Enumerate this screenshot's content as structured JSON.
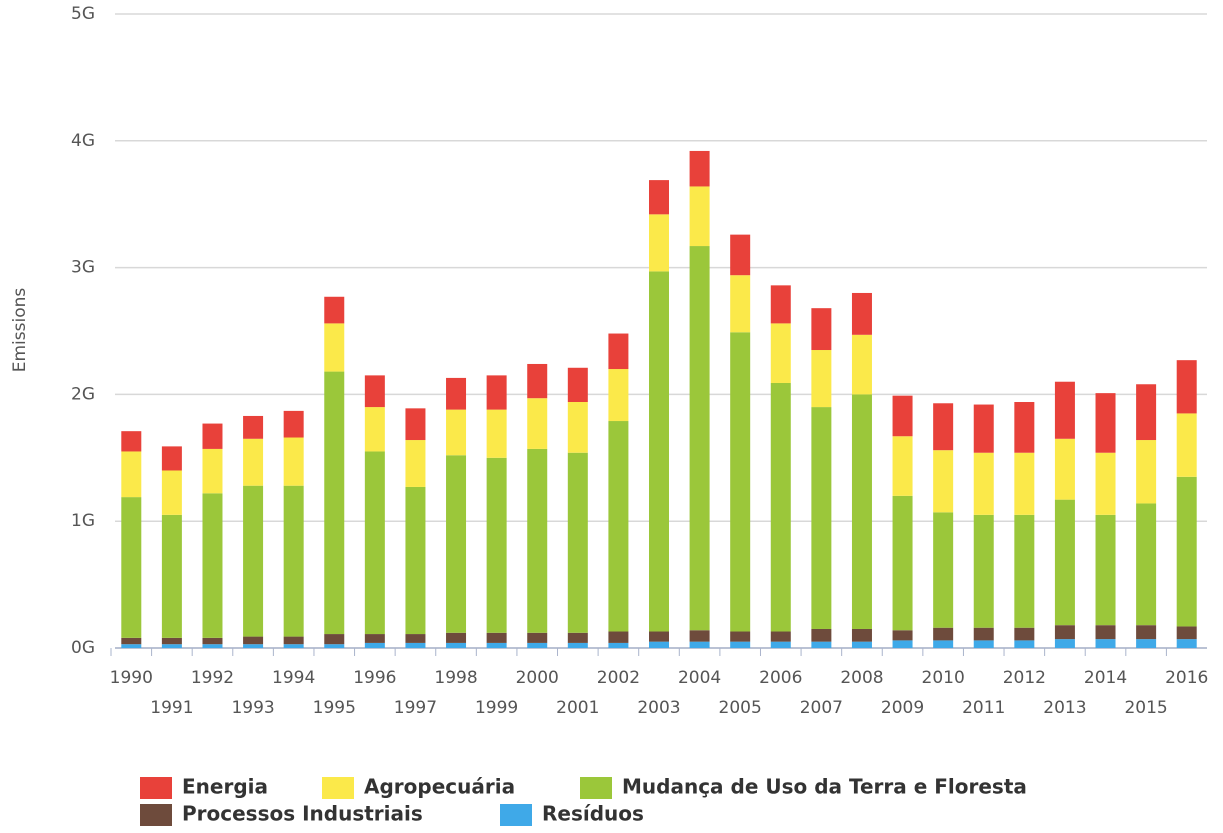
{
  "chart_data": {
    "type": "stacked_bar",
    "y_label": "Emissions",
    "categories": [
      "1990",
      "1991",
      "1992",
      "1993",
      "1994",
      "1995",
      "1996",
      "1997",
      "1998",
      "1999",
      "2000",
      "2001",
      "2002",
      "2003",
      "2004",
      "2005",
      "2006",
      "2007",
      "2008",
      "2009",
      "2010",
      "2011",
      "2012",
      "2013",
      "2014",
      "2015",
      "2016"
    ],
    "series": [
      {
        "name": "Energia",
        "color": "#e8413a",
        "values": [
          0.16,
          0.19,
          0.2,
          0.18,
          0.21,
          0.21,
          0.25,
          0.25,
          0.25,
          0.27,
          0.27,
          0.27,
          0.28,
          0.27,
          0.28,
          0.32,
          0.3,
          0.33,
          0.33,
          0.32,
          0.37,
          0.38,
          0.4,
          0.45,
          0.47,
          0.44,
          0.42
        ]
      },
      {
        "name": "Agropecuária",
        "color": "#fbe94a",
        "values": [
          0.36,
          0.35,
          0.35,
          0.37,
          0.38,
          0.38,
          0.35,
          0.37,
          0.36,
          0.38,
          0.4,
          0.4,
          0.41,
          0.45,
          0.47,
          0.45,
          0.47,
          0.45,
          0.47,
          0.47,
          0.49,
          0.49,
          0.49,
          0.48,
          0.49,
          0.5,
          0.5
        ]
      },
      {
        "name": "Mudança de Uso da Terra e Floresta",
        "color": "#9bc73a",
        "values": [
          1.11,
          0.97,
          1.14,
          1.19,
          1.19,
          2.07,
          1.44,
          1.16,
          1.4,
          1.38,
          1.45,
          1.42,
          1.66,
          2.84,
          3.03,
          2.36,
          1.96,
          1.75,
          1.85,
          1.06,
          0.91,
          0.89,
          0.89,
          0.99,
          0.87,
          0.96,
          1.18
        ]
      },
      {
        "name": "Processos Industriais",
        "color": "#6e4b3c",
        "values": [
          0.05,
          0.05,
          0.05,
          0.06,
          0.06,
          0.08,
          0.07,
          0.07,
          0.08,
          0.08,
          0.08,
          0.08,
          0.09,
          0.08,
          0.09,
          0.08,
          0.08,
          0.1,
          0.1,
          0.08,
          0.1,
          0.1,
          0.1,
          0.11,
          0.11,
          0.11,
          0.1
        ]
      },
      {
        "name": "Resíduos",
        "color": "#3fa9e8",
        "values": [
          0.03,
          0.03,
          0.03,
          0.03,
          0.03,
          0.03,
          0.04,
          0.04,
          0.04,
          0.04,
          0.04,
          0.04,
          0.04,
          0.05,
          0.05,
          0.05,
          0.05,
          0.05,
          0.05,
          0.06,
          0.06,
          0.06,
          0.06,
          0.07,
          0.07,
          0.07,
          0.07
        ]
      }
    ],
    "ylim": [
      0,
      5
    ],
    "yticks": [
      {
        "value": 0,
        "label": "0G"
      },
      {
        "value": 1,
        "label": "1G"
      },
      {
        "value": 2,
        "label": "2G"
      },
      {
        "value": 3,
        "label": "3G"
      },
      {
        "value": 4,
        "label": "4G"
      },
      {
        "value": 5,
        "label": "5G"
      }
    ],
    "grid": true
  }
}
